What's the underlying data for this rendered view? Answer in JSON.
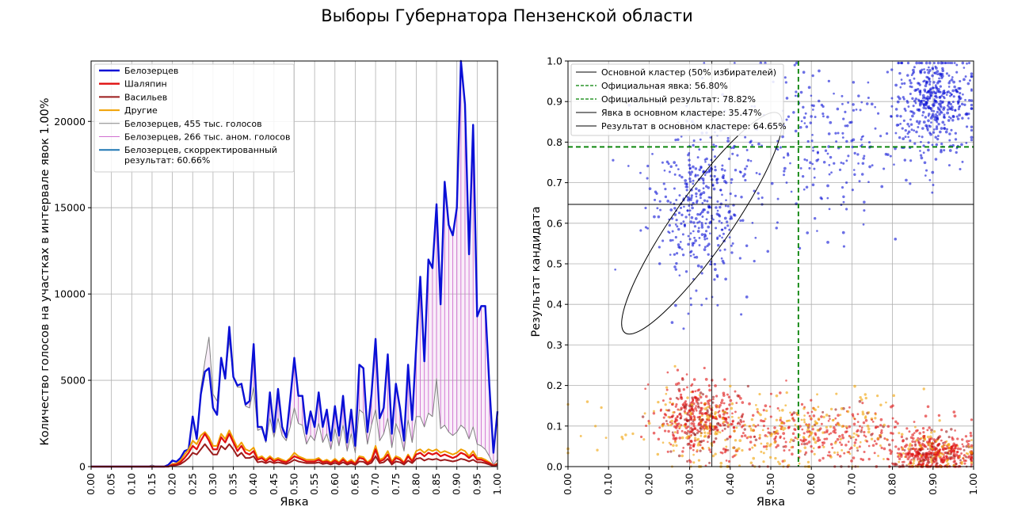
{
  "title": "Выборы Губернатора Пензенской области",
  "colors": {
    "belozertsev": "#0a10d6",
    "shalyapin": "#e01010",
    "vasilyev": "#9b1b1b",
    "others": "#f0a000",
    "b455": "#808080",
    "b266": "#d070d0",
    "corrected": "#1f77b4",
    "cluster": "#000000",
    "official": "#008000"
  },
  "chart_data": [
    {
      "type": "line",
      "xlabel": "Явка",
      "ylabel": "Количество голосов на участках в интервале явок 1.00%",
      "xlim": [
        0,
        1
      ],
      "ylim": [
        0,
        23500
      ],
      "xticks": [
        "0.00",
        "0.05",
        "0.10",
        "0.15",
        "0.20",
        "0.25",
        "0.30",
        "0.35",
        "0.40",
        "0.45",
        "0.50",
        "0.55",
        "0.60",
        "0.65",
        "0.70",
        "0.75",
        "0.80",
        "0.85",
        "0.90",
        "0.95",
        "1.00"
      ],
      "yticks": [
        "0",
        "5000",
        "10000",
        "15000",
        "20000"
      ],
      "grid": true,
      "legend_position": "top-left",
      "x": [
        0.0,
        0.01,
        0.02,
        0.03,
        0.04,
        0.05,
        0.06,
        0.07,
        0.08,
        0.09,
        0.1,
        0.11,
        0.12,
        0.13,
        0.14,
        0.15,
        0.16,
        0.17,
        0.18,
        0.19,
        0.2,
        0.21,
        0.22,
        0.23,
        0.24,
        0.25,
        0.26,
        0.27,
        0.28,
        0.29,
        0.3,
        0.31,
        0.32,
        0.33,
        0.34,
        0.35,
        0.36,
        0.37,
        0.38,
        0.39,
        0.4,
        0.41,
        0.42,
        0.43,
        0.44,
        0.45,
        0.46,
        0.47,
        0.48,
        0.49,
        0.5,
        0.51,
        0.52,
        0.53,
        0.54,
        0.55,
        0.56,
        0.57,
        0.58,
        0.59,
        0.6,
        0.61,
        0.62,
        0.63,
        0.64,
        0.65,
        0.66,
        0.67,
        0.68,
        0.69,
        0.7,
        0.71,
        0.72,
        0.73,
        0.74,
        0.75,
        0.76,
        0.77,
        0.78,
        0.79,
        0.8,
        0.81,
        0.82,
        0.83,
        0.84,
        0.85,
        0.86,
        0.87,
        0.88,
        0.89,
        0.9,
        0.91,
        0.92,
        0.93,
        0.94,
        0.95,
        0.96,
        0.97,
        0.98,
        0.99,
        1.0
      ],
      "series": [
        {
          "name": "Белозерцев",
          "color_key": "belozertsev",
          "width": 2.4,
          "values": [
            0,
            0,
            0,
            0,
            0,
            0,
            0,
            0,
            0,
            0,
            0,
            0,
            0,
            0,
            0,
            0,
            0,
            0,
            0,
            100,
            350,
            280,
            500,
            900,
            1000,
            2900,
            1600,
            4200,
            5500,
            5700,
            3400,
            3000,
            6300,
            5100,
            8100,
            5200,
            4700,
            4800,
            3600,
            3800,
            7100,
            2300,
            2300,
            1500,
            4300,
            2000,
            4500,
            2300,
            1700,
            3900,
            6300,
            4100,
            4100,
            1900,
            3200,
            2300,
            4300,
            2300,
            3300,
            1500,
            3500,
            1800,
            4100,
            1400,
            3300,
            1200,
            5900,
            5700,
            2000,
            4200,
            7400,
            2800,
            3400,
            6500,
            1900,
            4800,
            3400,
            1500,
            5900,
            2700,
            7000,
            11000,
            6100,
            12000,
            11500,
            15200,
            9400,
            16500,
            14000,
            13400,
            15000,
            23500,
            21000,
            12300,
            19800,
            8700,
            9300,
            9300,
            4700,
            800,
            3200
          ]
        },
        {
          "name": "Шаляпин",
          "color_key": "shalyapin",
          "width": 2.2,
          "values": [
            0,
            0,
            0,
            0,
            0,
            0,
            0,
            0,
            0,
            0,
            0,
            0,
            0,
            0,
            0,
            0,
            0,
            0,
            0,
            0,
            100,
            120,
            250,
            500,
            800,
            1200,
            1000,
            1500,
            1900,
            1500,
            1000,
            1000,
            1700,
            1400,
            1900,
            1400,
            900,
            1200,
            800,
            700,
            900,
            400,
            500,
            300,
            500,
            300,
            400,
            300,
            250,
            400,
            600,
            500,
            400,
            300,
            300,
            300,
            400,
            250,
            300,
            200,
            350,
            200,
            400,
            200,
            300,
            150,
            500,
            450,
            200,
            350,
            1000,
            300,
            400,
            700,
            200,
            500,
            400,
            200,
            600,
            300,
            700,
            800,
            600,
            800,
            700,
            800,
            600,
            700,
            600,
            500,
            600,
            800,
            700,
            500,
            700,
            400,
            400,
            300,
            200,
            50,
            150
          ]
        },
        {
          "name": "Васильев",
          "color_key": "vasilyev",
          "width": 2.0,
          "values": [
            0,
            0,
            0,
            0,
            0,
            0,
            0,
            0,
            0,
            0,
            0,
            0,
            0,
            0,
            0,
            0,
            0,
            0,
            0,
            0,
            60,
            80,
            150,
            300,
            500,
            800,
            700,
            1000,
            1300,
            1000,
            700,
            700,
            1200,
            1000,
            1300,
            1000,
            600,
            800,
            500,
            500,
            600,
            250,
            300,
            200,
            300,
            200,
            250,
            200,
            150,
            250,
            400,
            300,
            250,
            200,
            200,
            200,
            250,
            150,
            200,
            120,
            220,
            120,
            250,
            120,
            200,
            100,
            300,
            280,
            120,
            220,
            600,
            200,
            250,
            450,
            120,
            300,
            250,
            120,
            350,
            200,
            450,
            500,
            350,
            450,
            400,
            450,
            350,
            400,
            350,
            300,
            350,
            450,
            400,
            300,
            400,
            250,
            250,
            200,
            120,
            30,
            100
          ]
        },
        {
          "name": "Другие",
          "color_key": "others",
          "width": 2.0,
          "values": [
            0,
            0,
            0,
            0,
            0,
            0,
            0,
            0,
            0,
            0,
            0,
            0,
            0,
            0,
            0,
            0,
            0,
            0,
            0,
            0,
            150,
            180,
            350,
            700,
            1000,
            1500,
            1300,
            1800,
            2000,
            1700,
            1200,
            1200,
            1900,
            1600,
            2100,
            1600,
            1100,
            1400,
            1000,
            900,
            1100,
            500,
            600,
            400,
            600,
            400,
            500,
            400,
            300,
            500,
            800,
            600,
            500,
            400,
            400,
            400,
            500,
            300,
            400,
            250,
            450,
            250,
            500,
            250,
            400,
            200,
            600,
            550,
            250,
            450,
            1200,
            400,
            500,
            900,
            300,
            600,
            500,
            250,
            700,
            350,
            900,
            1000,
            800,
            1000,
            900,
            1000,
            800,
            900,
            800,
            700,
            800,
            1000,
            900,
            600,
            900,
            500,
            500,
            400,
            250,
            60,
            180
          ]
        },
        {
          "name": "Белозерцев, 455 тыс. голосов",
          "color_key": "b455",
          "width": 1.0,
          "values": [
            0,
            0,
            0,
            0,
            0,
            0,
            0,
            0,
            0,
            0,
            0,
            0,
            0,
            0,
            0,
            100,
            0,
            0,
            0,
            100,
            350,
            280,
            500,
            900,
            1000,
            2900,
            1700,
            4500,
            6100,
            7500,
            4200,
            3800,
            6100,
            5100,
            7300,
            5200,
            4600,
            4600,
            3500,
            3400,
            4600,
            2100,
            2200,
            1400,
            2800,
            1700,
            2800,
            1800,
            1500,
            2300,
            3400,
            2500,
            2400,
            1300,
            1800,
            1500,
            2500,
            1400,
            1900,
            1000,
            2200,
            1200,
            2400,
            900,
            1900,
            800,
            3300,
            3100,
            1300,
            2400,
            3300,
            1500,
            1900,
            2800,
            1100,
            2500,
            1900,
            900,
            2700,
            1400,
            2900,
            2900,
            2300,
            3100,
            2900,
            5100,
            2200,
            2400,
            2000,
            1800,
            2000,
            2400,
            2200,
            1600,
            2300,
            1300,
            1200,
            1000,
            600,
            100,
            400
          ]
        }
      ],
      "fill_between": {
        "name": "Белозерцев, 266 тыс. аном. голосов",
        "color_key": "b266",
        "upper": "Белозерцев",
        "lower": "Белозерцев, 455 тыс. голосов"
      },
      "legend": [
        {
          "label": "Белозерцев",
          "color_key": "belozertsev"
        },
        {
          "label": "Шаляпин",
          "color_key": "shalyapin"
        },
        {
          "label": "Васильев",
          "color_key": "vasilyev"
        },
        {
          "label": "Другие",
          "color_key": "others"
        },
        {
          "label": "Белозерцев, 455 тыс. голосов",
          "color_key": "b455"
        },
        {
          "label": "Белозерцев, 266 тыс. аном. голосов",
          "color_key": "b266"
        },
        {
          "label": "Белозерцев, скорректированный",
          "label2": "результат: 60.66%",
          "color_key": "corrected"
        }
      ]
    },
    {
      "type": "scatter",
      "xlabel": "Явка",
      "ylabel": "Результат кандидата",
      "xlim": [
        0,
        1
      ],
      "ylim": [
        0,
        1
      ],
      "xticks": [
        "0.00",
        "0.10",
        "0.20",
        "0.30",
        "0.40",
        "0.50",
        "0.60",
        "0.70",
        "0.80",
        "0.90",
        "1.00"
      ],
      "yticks": [
        "0.0",
        "0.1",
        "0.2",
        "0.3",
        "0.4",
        "0.5",
        "0.6",
        "0.7",
        "0.8",
        "0.9",
        "1.0"
      ],
      "grid": true,
      "legend_position": "top-left",
      "official_turnout": 0.568,
      "official_result": 0.7882,
      "cluster_turnout": 0.3547,
      "cluster_result": 0.6465,
      "cluster_ellipse": {
        "center": [
          0.33,
          0.6
        ],
        "semi_axes": [
          0.07,
          0.33
        ],
        "angle_deg": 35
      },
      "point_clusters": [
        {
          "series": "Белозерцев",
          "color_key": "belozertsev",
          "cx": 0.32,
          "cy": 0.64,
          "sx": 0.06,
          "sy": 0.1,
          "n": 380
        },
        {
          "series": "Белозерцев",
          "color_key": "belozertsev",
          "cx": 0.9,
          "cy": 0.9,
          "sx": 0.05,
          "sy": 0.06,
          "n": 420
        },
        {
          "series": "Белозерцев",
          "color_key": "belozertsev",
          "cx": 0.65,
          "cy": 0.8,
          "sx": 0.15,
          "sy": 0.1,
          "n": 260
        },
        {
          "series": "Шаляпин",
          "color_key": "shalyapin",
          "cx": 0.32,
          "cy": 0.12,
          "sx": 0.05,
          "sy": 0.045,
          "n": 420
        },
        {
          "series": "Шаляпин",
          "color_key": "shalyapin",
          "cx": 0.9,
          "cy": 0.03,
          "sx": 0.05,
          "sy": 0.025,
          "n": 480
        },
        {
          "series": "Шаляпин",
          "color_key": "shalyapin",
          "cx": 0.6,
          "cy": 0.08,
          "sx": 0.15,
          "sy": 0.04,
          "n": 380
        },
        {
          "series": "Другие",
          "color_key": "others",
          "cx": 0.5,
          "cy": 0.08,
          "sx": 0.2,
          "sy": 0.05,
          "n": 220
        }
      ],
      "legend": [
        {
          "label": "Основной кластер (50% избирателей)",
          "style": "solid-black"
        },
        {
          "label": "Официальная явка: 56.80%",
          "style": "dash-green"
        },
        {
          "label": "Официальный результат: 78.82%",
          "style": "dash-green"
        },
        {
          "label": "Явка в основном кластере: 35.47%",
          "style": "solid-black"
        },
        {
          "label": "Результат в основном кластере: 64.65%",
          "style": "solid-black"
        }
      ]
    }
  ]
}
